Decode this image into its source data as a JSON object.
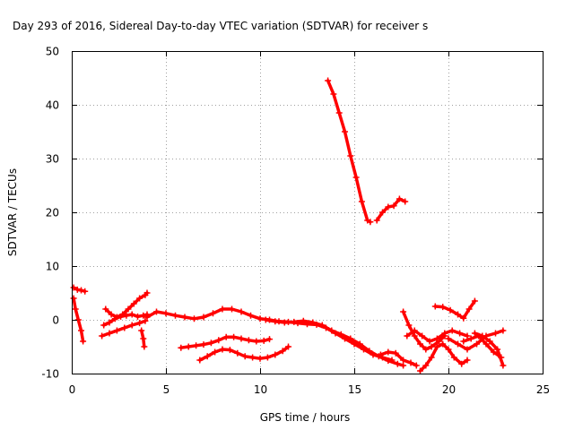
{
  "chart_data": {
    "type": "scatter",
    "title": "Day 293 of 2016, Sidereal Day-to-day VTEC variation (SDTVAR) for receiver s",
    "xlabel": "GPS time / hours",
    "ylabel": "SDTVAR / TECUs",
    "xlim": [
      0,
      25
    ],
    "ylim": [
      -10,
      50
    ],
    "xticks": [
      0,
      5,
      10,
      15,
      20,
      25
    ],
    "yticks": [
      -10,
      0,
      10,
      20,
      30,
      40,
      50
    ],
    "grid": true,
    "marker": "plus",
    "color": "#ff0000",
    "series": [
      {
        "x": [
          0.1,
          0.3,
          0.5,
          0.7
        ],
        "y": [
          6,
          5.6,
          5.5,
          5.3
        ]
      },
      {
        "x": [
          0.1,
          0.2,
          0.35,
          0.5,
          0.6
        ],
        "y": [
          4,
          2,
          0,
          -2,
          -4
        ]
      },
      {
        "x": [
          1.6,
          2.0,
          2.4,
          2.8,
          3.2,
          3.6,
          3.9
        ],
        "y": [
          -3,
          -2.5,
          -2,
          -1.5,
          -1,
          -0.6,
          -0.2
        ]
      },
      {
        "x": [
          1.7,
          2.0,
          2.3,
          2.6,
          2.9,
          3.2,
          3.5,
          3.8,
          4.0
        ],
        "y": [
          -1,
          -0.5,
          0.2,
          0.6,
          0.8,
          1.0,
          0.6,
          0.8,
          1.0
        ]
      },
      {
        "x": [
          1.8,
          2.1,
          2.4,
          2.7,
          3.0,
          3.3,
          3.6,
          3.9,
          4.0
        ],
        "y": [
          2.0,
          1.0,
          0.5,
          1.0,
          2.0,
          3.0,
          4.0,
          4.6,
          5.0
        ]
      },
      {
        "x": [
          3.7,
          3.8,
          3.85
        ],
        "y": [
          -2,
          -3.5,
          -5
        ]
      },
      {
        "x": [
          4.0,
          4.5,
          5.0,
          5.5,
          6.0,
          6.5,
          7.0,
          7.5,
          8.0,
          8.5,
          9.0,
          9.5,
          10.0,
          10.5,
          11.0,
          11.5,
          12.0,
          12.5,
          13.0,
          13.5,
          14.0,
          14.5,
          15.0,
          15.5,
          16.0,
          16.5,
          17.0
        ],
        "y": [
          0.5,
          1.5,
          1.2,
          0.8,
          0.5,
          0.2,
          0.5,
          1.2,
          2.0,
          2.0,
          1.5,
          0.8,
          0.2,
          0.0,
          -0.3,
          -0.4,
          -0.6,
          -0.8,
          -0.9,
          -1.5,
          -2.5,
          -3.5,
          -4.5,
          -5.5,
          -6.5,
          -7.0,
          -7.5
        ]
      },
      {
        "x": [
          5.8,
          6.2,
          6.6,
          7.0,
          7.4,
          7.8,
          8.2,
          8.6,
          9.0,
          9.4,
          9.8,
          10.2,
          10.5
        ],
        "y": [
          -5.2,
          -5.0,
          -4.8,
          -4.6,
          -4.3,
          -3.8,
          -3.2,
          -3.2,
          -3.5,
          -3.8,
          -4.0,
          -3.9,
          -3.6
        ]
      },
      {
        "x": [
          6.8,
          7.2,
          7.6,
          8.0,
          8.4,
          8.8,
          9.2,
          9.6,
          10.0,
          10.4,
          10.8,
          11.2,
          11.5
        ],
        "y": [
          -7.5,
          -6.8,
          -6.0,
          -5.5,
          -5.6,
          -6.2,
          -6.8,
          -7.0,
          -7.2,
          -7.0,
          -6.5,
          -5.8,
          -5.0
        ]
      },
      {
        "x": [
          10.3,
          10.8,
          11.3,
          11.8,
          12.3,
          12.8,
          13.3,
          13.8,
          14.3,
          14.8,
          15.3,
          15.8,
          16.3,
          16.8,
          17.3,
          17.6
        ],
        "y": [
          0,
          -0.3,
          -0.5,
          -0.4,
          -0.2,
          -0.5,
          -1.0,
          -2.0,
          -2.7,
          -3.5,
          -4.5,
          -5.8,
          -6.8,
          -7.6,
          -8.2,
          -8.5
        ]
      },
      {
        "x": [
          13.6,
          13.9,
          14.2,
          14.5,
          14.8,
          15.1,
          15.4,
          15.7,
          15.85
        ],
        "y": [
          44.5,
          42,
          38.5,
          35,
          30.5,
          26.5,
          22,
          18.5,
          18.2
        ]
      },
      {
        "x": [
          16.2,
          16.5,
          16.8,
          17.1,
          17.4,
          17.7
        ],
        "y": [
          18.5,
          20,
          21,
          21.2,
          22.5,
          22
        ]
      },
      {
        "x": [
          16.4,
          16.8,
          17.2,
          17.6,
          18.0,
          18.3
        ],
        "y": [
          -6.5,
          -6.0,
          -6.2,
          -7.5,
          -8.0,
          -8.5
        ]
      },
      {
        "x": [
          17.6,
          17.9,
          18.2,
          18.5,
          18.8,
          19.1,
          19.5,
          19.8
        ],
        "y": [
          1.5,
          -1.0,
          -3.0,
          -4.5,
          -5.5,
          -5.0,
          -4.0,
          -3.0
        ]
      },
      {
        "x": [
          17.8,
          18.2,
          18.6,
          19.0,
          19.4,
          19.8,
          20.2,
          20.6,
          21.0
        ],
        "y": [
          -3.0,
          -2.0,
          -3.0,
          -4.0,
          -3.5,
          -2.5,
          -2.0,
          -2.5,
          -3.0
        ]
      },
      {
        "x": [
          18.5,
          18.8,
          19.1,
          19.4,
          19.7,
          20.0,
          20.3,
          20.7,
          21.0
        ],
        "y": [
          -9.5,
          -8.5,
          -7.0,
          -5.0,
          -4.5,
          -5.5,
          -7.0,
          -8.2,
          -7.5
        ]
      },
      {
        "x": [
          19.3,
          19.7,
          20.1,
          20.5,
          20.8,
          21.1,
          21.4
        ],
        "y": [
          2.5,
          2.4,
          1.8,
          1.0,
          0.3,
          2.0,
          3.5
        ]
      },
      {
        "x": [
          20.0,
          20.5,
          21.0,
          21.5,
          22.0,
          22.5,
          22.9
        ],
        "y": [
          -3.5,
          -4.5,
          -5.5,
          -4.5,
          -3.0,
          -2.5,
          -2.0
        ]
      },
      {
        "x": [
          20.8,
          21.2,
          21.6,
          22.0,
          22.4,
          22.8
        ],
        "y": [
          -4.0,
          -3.5,
          -3.0,
          -4.5,
          -6.0,
          -7.0
        ]
      },
      {
        "x": [
          21.4,
          21.8,
          22.2,
          22.6,
          22.9
        ],
        "y": [
          -2.5,
          -3.0,
          -4.0,
          -5.5,
          -8.5
        ]
      }
    ]
  }
}
